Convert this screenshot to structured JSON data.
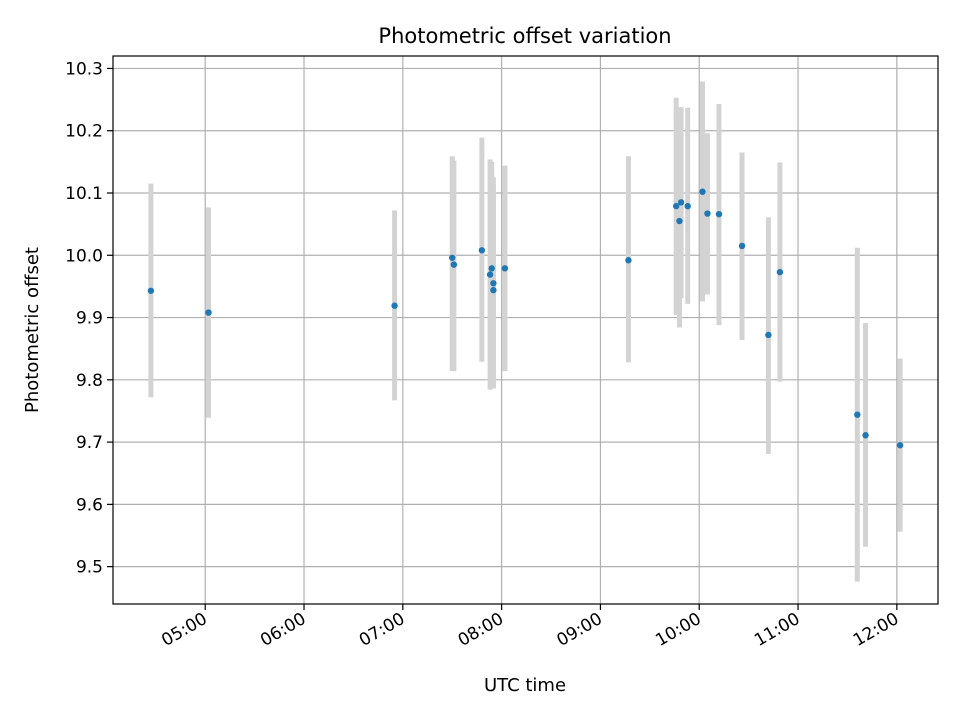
{
  "chart_data": {
    "type": "scatter",
    "title": "Photometric offset variation",
    "xlabel": "UTC time",
    "ylabel": "Photometric offset",
    "xlim": [
      "04:04",
      "12:25"
    ],
    "ylim": [
      9.44,
      10.32
    ],
    "grid": true,
    "x_ticks": [
      "05:00",
      "06:00",
      "07:00",
      "08:00",
      "09:00",
      "10:00",
      "11:00",
      "12:00"
    ],
    "y_ticks": [
      "9.5",
      "9.6",
      "9.7",
      "9.8",
      "9.9",
      "10.0",
      "10.1",
      "10.2",
      "10.3"
    ],
    "colors": {
      "point": "#1f77b4",
      "errorbar": "#d3d3d3",
      "grid": "#b0b0b0"
    },
    "series": [
      {
        "points": [
          {
            "t": "04:27",
            "y": 9.943,
            "lo": 9.772,
            "hi": 10.115
          },
          {
            "t": "05:02",
            "y": 9.908,
            "lo": 9.739,
            "hi": 10.077
          },
          {
            "t": "06:55",
            "y": 9.919,
            "lo": 9.767,
            "hi": 10.072
          },
          {
            "t": "07:30",
            "y": 9.996,
            "lo": 9.814,
            "hi": 10.159
          },
          {
            "t": "07:31",
            "y": 9.985,
            "lo": 9.814,
            "hi": 10.152
          },
          {
            "t": "07:48",
            "y": 10.008,
            "lo": 9.829,
            "hi": 10.189
          },
          {
            "t": "07:53",
            "y": 9.969,
            "lo": 9.784,
            "hi": 10.154
          },
          {
            "t": "07:54",
            "y": 9.979,
            "lo": 9.809,
            "hi": 10.15
          },
          {
            "t": "07:55",
            "y": 9.955,
            "lo": 9.787,
            "hi": 10.125
          },
          {
            "t": "07:55",
            "y": 9.944,
            "lo": 9.786,
            "hi": 10.112
          },
          {
            "t": "08:02",
            "y": 9.979,
            "lo": 9.814,
            "hi": 10.144
          },
          {
            "t": "09:17",
            "y": 9.992,
            "lo": 9.828,
            "hi": 10.159
          },
          {
            "t": "09:46",
            "y": 10.079,
            "lo": 9.904,
            "hi": 10.253
          },
          {
            "t": "09:48",
            "y": 10.055,
            "lo": 9.884,
            "hi": 10.227
          },
          {
            "t": "09:49",
            "y": 10.085,
            "lo": 9.931,
            "hi": 10.238
          },
          {
            "t": "09:53",
            "y": 10.079,
            "lo": 9.922,
            "hi": 10.237
          },
          {
            "t": "10:02",
            "y": 10.102,
            "lo": 9.926,
            "hi": 10.279
          },
          {
            "t": "10:05",
            "y": 10.067,
            "lo": 9.937,
            "hi": 10.196
          },
          {
            "t": "10:12",
            "y": 10.066,
            "lo": 9.888,
            "hi": 10.243
          },
          {
            "t": "10:26",
            "y": 10.015,
            "lo": 9.864,
            "hi": 10.165
          },
          {
            "t": "10:42",
            "y": 9.872,
            "lo": 9.681,
            "hi": 10.061
          },
          {
            "t": "10:49",
            "y": 9.973,
            "lo": 9.797,
            "hi": 10.149
          },
          {
            "t": "11:36",
            "y": 9.744,
            "lo": 9.476,
            "hi": 10.012
          },
          {
            "t": "11:41",
            "y": 9.711,
            "lo": 9.532,
            "hi": 9.891
          },
          {
            "t": "12:02",
            "y": 9.695,
            "lo": 9.556,
            "hi": 9.834
          }
        ]
      }
    ]
  }
}
